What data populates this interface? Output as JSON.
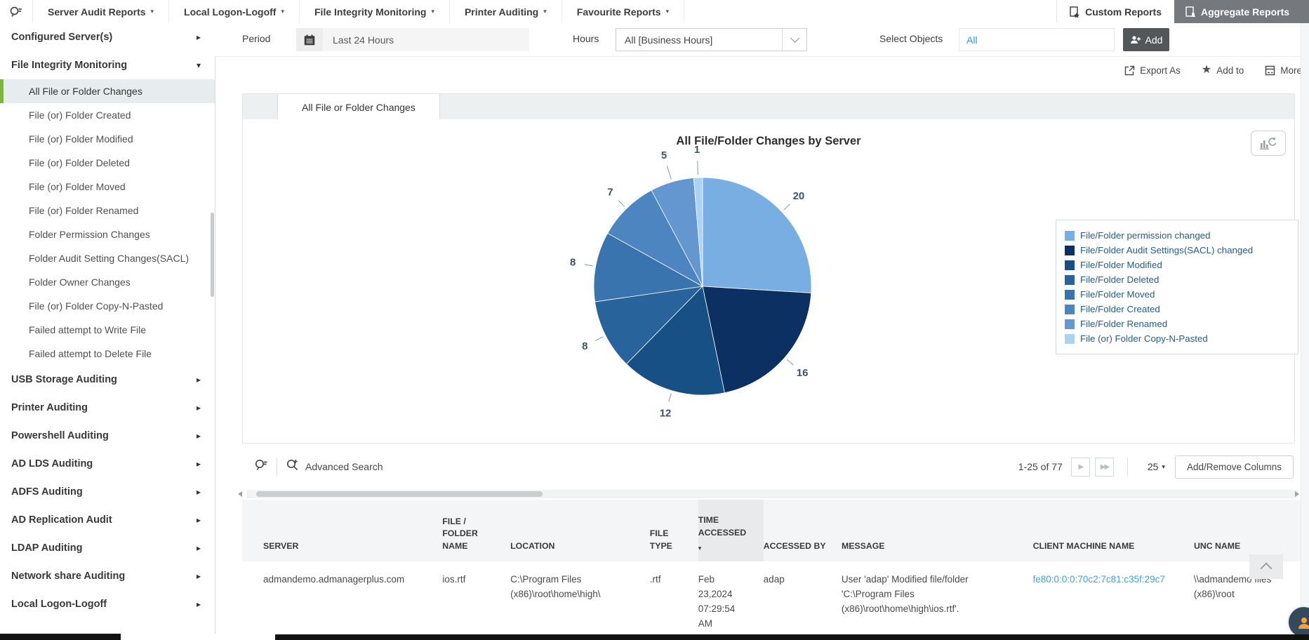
{
  "topnav": {
    "items": [
      {
        "label": "Server Audit Reports"
      },
      {
        "label": "Local Logon-Logoff"
      },
      {
        "label": "File Integrity Monitoring"
      },
      {
        "label": "Printer Auditing"
      },
      {
        "label": "Favourite Reports"
      }
    ],
    "custom_reports": "Custom Reports",
    "aggregate_reports": "Aggregate Reports"
  },
  "sidebar": {
    "items": [
      {
        "label": "Configured Server(s)",
        "type": "section",
        "expanded": false
      },
      {
        "label": "File Integrity Monitoring",
        "type": "section",
        "expanded": true
      },
      {
        "label": "All File or Folder Changes",
        "type": "child",
        "selected": true
      },
      {
        "label": "File (or) Folder Created",
        "type": "child",
        "selected": false
      },
      {
        "label": "File (or) Folder Modified",
        "type": "child",
        "selected": false
      },
      {
        "label": "File (or) Folder Deleted",
        "type": "child",
        "selected": false
      },
      {
        "label": "File (or) Folder Moved",
        "type": "child",
        "selected": false
      },
      {
        "label": "File (or) Folder Renamed",
        "type": "child",
        "selected": false
      },
      {
        "label": "Folder Permission Changes",
        "type": "child",
        "selected": false
      },
      {
        "label": "Folder Audit Setting Changes(SACL)",
        "type": "child",
        "selected": false
      },
      {
        "label": "Folder Owner Changes",
        "type": "child",
        "selected": false
      },
      {
        "label": "File (or) Folder Copy-N-Pasted",
        "type": "child",
        "selected": false
      },
      {
        "label": "Failed attempt to Write File",
        "type": "child",
        "selected": false
      },
      {
        "label": "Failed attempt to Delete File",
        "type": "child",
        "selected": false
      },
      {
        "label": "USB Storage Auditing",
        "type": "section",
        "expanded": false
      },
      {
        "label": "Printer Auditing",
        "type": "section",
        "expanded": false
      },
      {
        "label": "Powershell Auditing",
        "type": "section",
        "expanded": false
      },
      {
        "label": "AD LDS Auditing",
        "type": "section",
        "expanded": false
      },
      {
        "label": "ADFS Auditing",
        "type": "section",
        "expanded": false
      },
      {
        "label": "AD Replication Audit",
        "type": "section",
        "expanded": false
      },
      {
        "label": "LDAP Auditing",
        "type": "section",
        "expanded": false
      },
      {
        "label": "Network share Auditing",
        "type": "section",
        "expanded": false
      },
      {
        "label": "Local Logon-Logoff",
        "type": "section",
        "expanded": false
      }
    ]
  },
  "filters": {
    "period_label": "Period",
    "period_value": "Last 24 Hours",
    "hours_label": "Hours",
    "hours_value": "All [Business Hours]",
    "select_objects_label": "Select Objects",
    "select_objects_value": "All",
    "add_label": "Add"
  },
  "actions": {
    "export_as": "Export As",
    "add_to": "Add to",
    "more": "More"
  },
  "tab": {
    "label": "All File or Folder Changes"
  },
  "chart_data": {
    "type": "pie",
    "title": "All File/Folder Changes by Server",
    "total": 77,
    "direction": "clockwise",
    "start_angle_deg": 0,
    "legend_position": "right",
    "series": [
      {
        "name": "File/Folder permission changed",
        "value": 20,
        "color": "#79aee3"
      },
      {
        "name": "File/Folder Audit Settings(SACL) changed",
        "value": 16,
        "color": "#0b3061"
      },
      {
        "name": "File/Folder Modified",
        "value": 12,
        "color": "#175084"
      },
      {
        "name": "File/Folder Deleted",
        "value": 8,
        "color": "#28639c"
      },
      {
        "name": "File/Folder Moved",
        "value": 8,
        "color": "#3a74ae"
      },
      {
        "name": "File/Folder Created",
        "value": 7,
        "color": "#4c85bf"
      },
      {
        "name": "File/Folder Renamed",
        "value": 5,
        "color": "#6497cf"
      },
      {
        "name": "File (or) Folder Copy-N-Pasted",
        "value": 1,
        "color": "#abd2f3"
      }
    ]
  },
  "table": {
    "advanced_search": "Advanced Search",
    "pagination_range": "1-25 of 77",
    "page_size": "25",
    "add_remove_columns": "Add/Remove Columns",
    "sorted_column": "TIME ACCESSED",
    "columns": [
      "SERVER",
      "FILE / FOLDER NAME",
      "LOCATION",
      "FILE TYPE",
      "TIME ACCESSED",
      "ACCESSED BY",
      "MESSAGE",
      "CLIENT MACHINE NAME",
      "UNC NAME"
    ],
    "rows": [
      [
        "admandemo.admanagerplus.com",
        "ios.rtf",
        "C:\\Program Files (x86)\\root\\home\\high\\",
        ".rtf",
        "Feb 23,2024 07:29:54 AM",
        "adap",
        "User 'adap' Modified file/folder 'C:\\Program Files (x86)\\root\\home\\high\\ios.rtf'.",
        "fe80:0:0:0:70c2:7c81:c35f:29c7",
        "\\\\admandemo files (x86)\\root"
      ]
    ]
  }
}
